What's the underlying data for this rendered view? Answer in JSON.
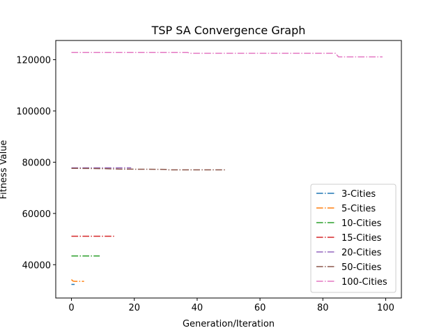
{
  "chart_data": {
    "type": "line",
    "title": "TSP SA Convergence Graph",
    "xlabel": "Generation/Iteration",
    "ylabel": "Fitness Value",
    "xlim": [
      -5,
      105
    ],
    "ylim": [
      27000,
      127500
    ],
    "xticks": [
      0,
      20,
      40,
      60,
      80,
      100
    ],
    "yticks": [
      40000,
      60000,
      80000,
      100000,
      120000
    ],
    "grid": false,
    "legend_position": "lower-right",
    "line_style": "dash-dot",
    "series": [
      {
        "name": "3-Cities",
        "color": "#1f77b4",
        "x": [
          0,
          1
        ],
        "y": [
          32300,
          32300
        ]
      },
      {
        "name": "5-Cities",
        "color": "#ff7f0e",
        "x": [
          0,
          0.5,
          1,
          2,
          3,
          4
        ],
        "y": [
          34200,
          33600,
          33500,
          33500,
          33500,
          33500
        ]
      },
      {
        "name": "10-Cities",
        "color": "#2ca02c",
        "x": [
          0,
          9
        ],
        "y": [
          43400,
          43400
        ]
      },
      {
        "name": "15-Cities",
        "color": "#d62728",
        "x": [
          0,
          14
        ],
        "y": [
          51100,
          51100
        ]
      },
      {
        "name": "20-Cities",
        "color": "#9467bd",
        "x": [
          0,
          19
        ],
        "y": [
          77800,
          77800
        ]
      },
      {
        "name": "50-Cities",
        "color": "#8c564b",
        "x": [
          0,
          10,
          15,
          30,
          31,
          49
        ],
        "y": [
          77600,
          77500,
          77300,
          77200,
          77000,
          77000
        ]
      },
      {
        "name": "100-Cities",
        "color": "#e377c2",
        "x": [
          0,
          37,
          38,
          84,
          85,
          99
        ],
        "y": [
          122800,
          122800,
          122500,
          122500,
          121100,
          121100
        ]
      }
    ]
  }
}
